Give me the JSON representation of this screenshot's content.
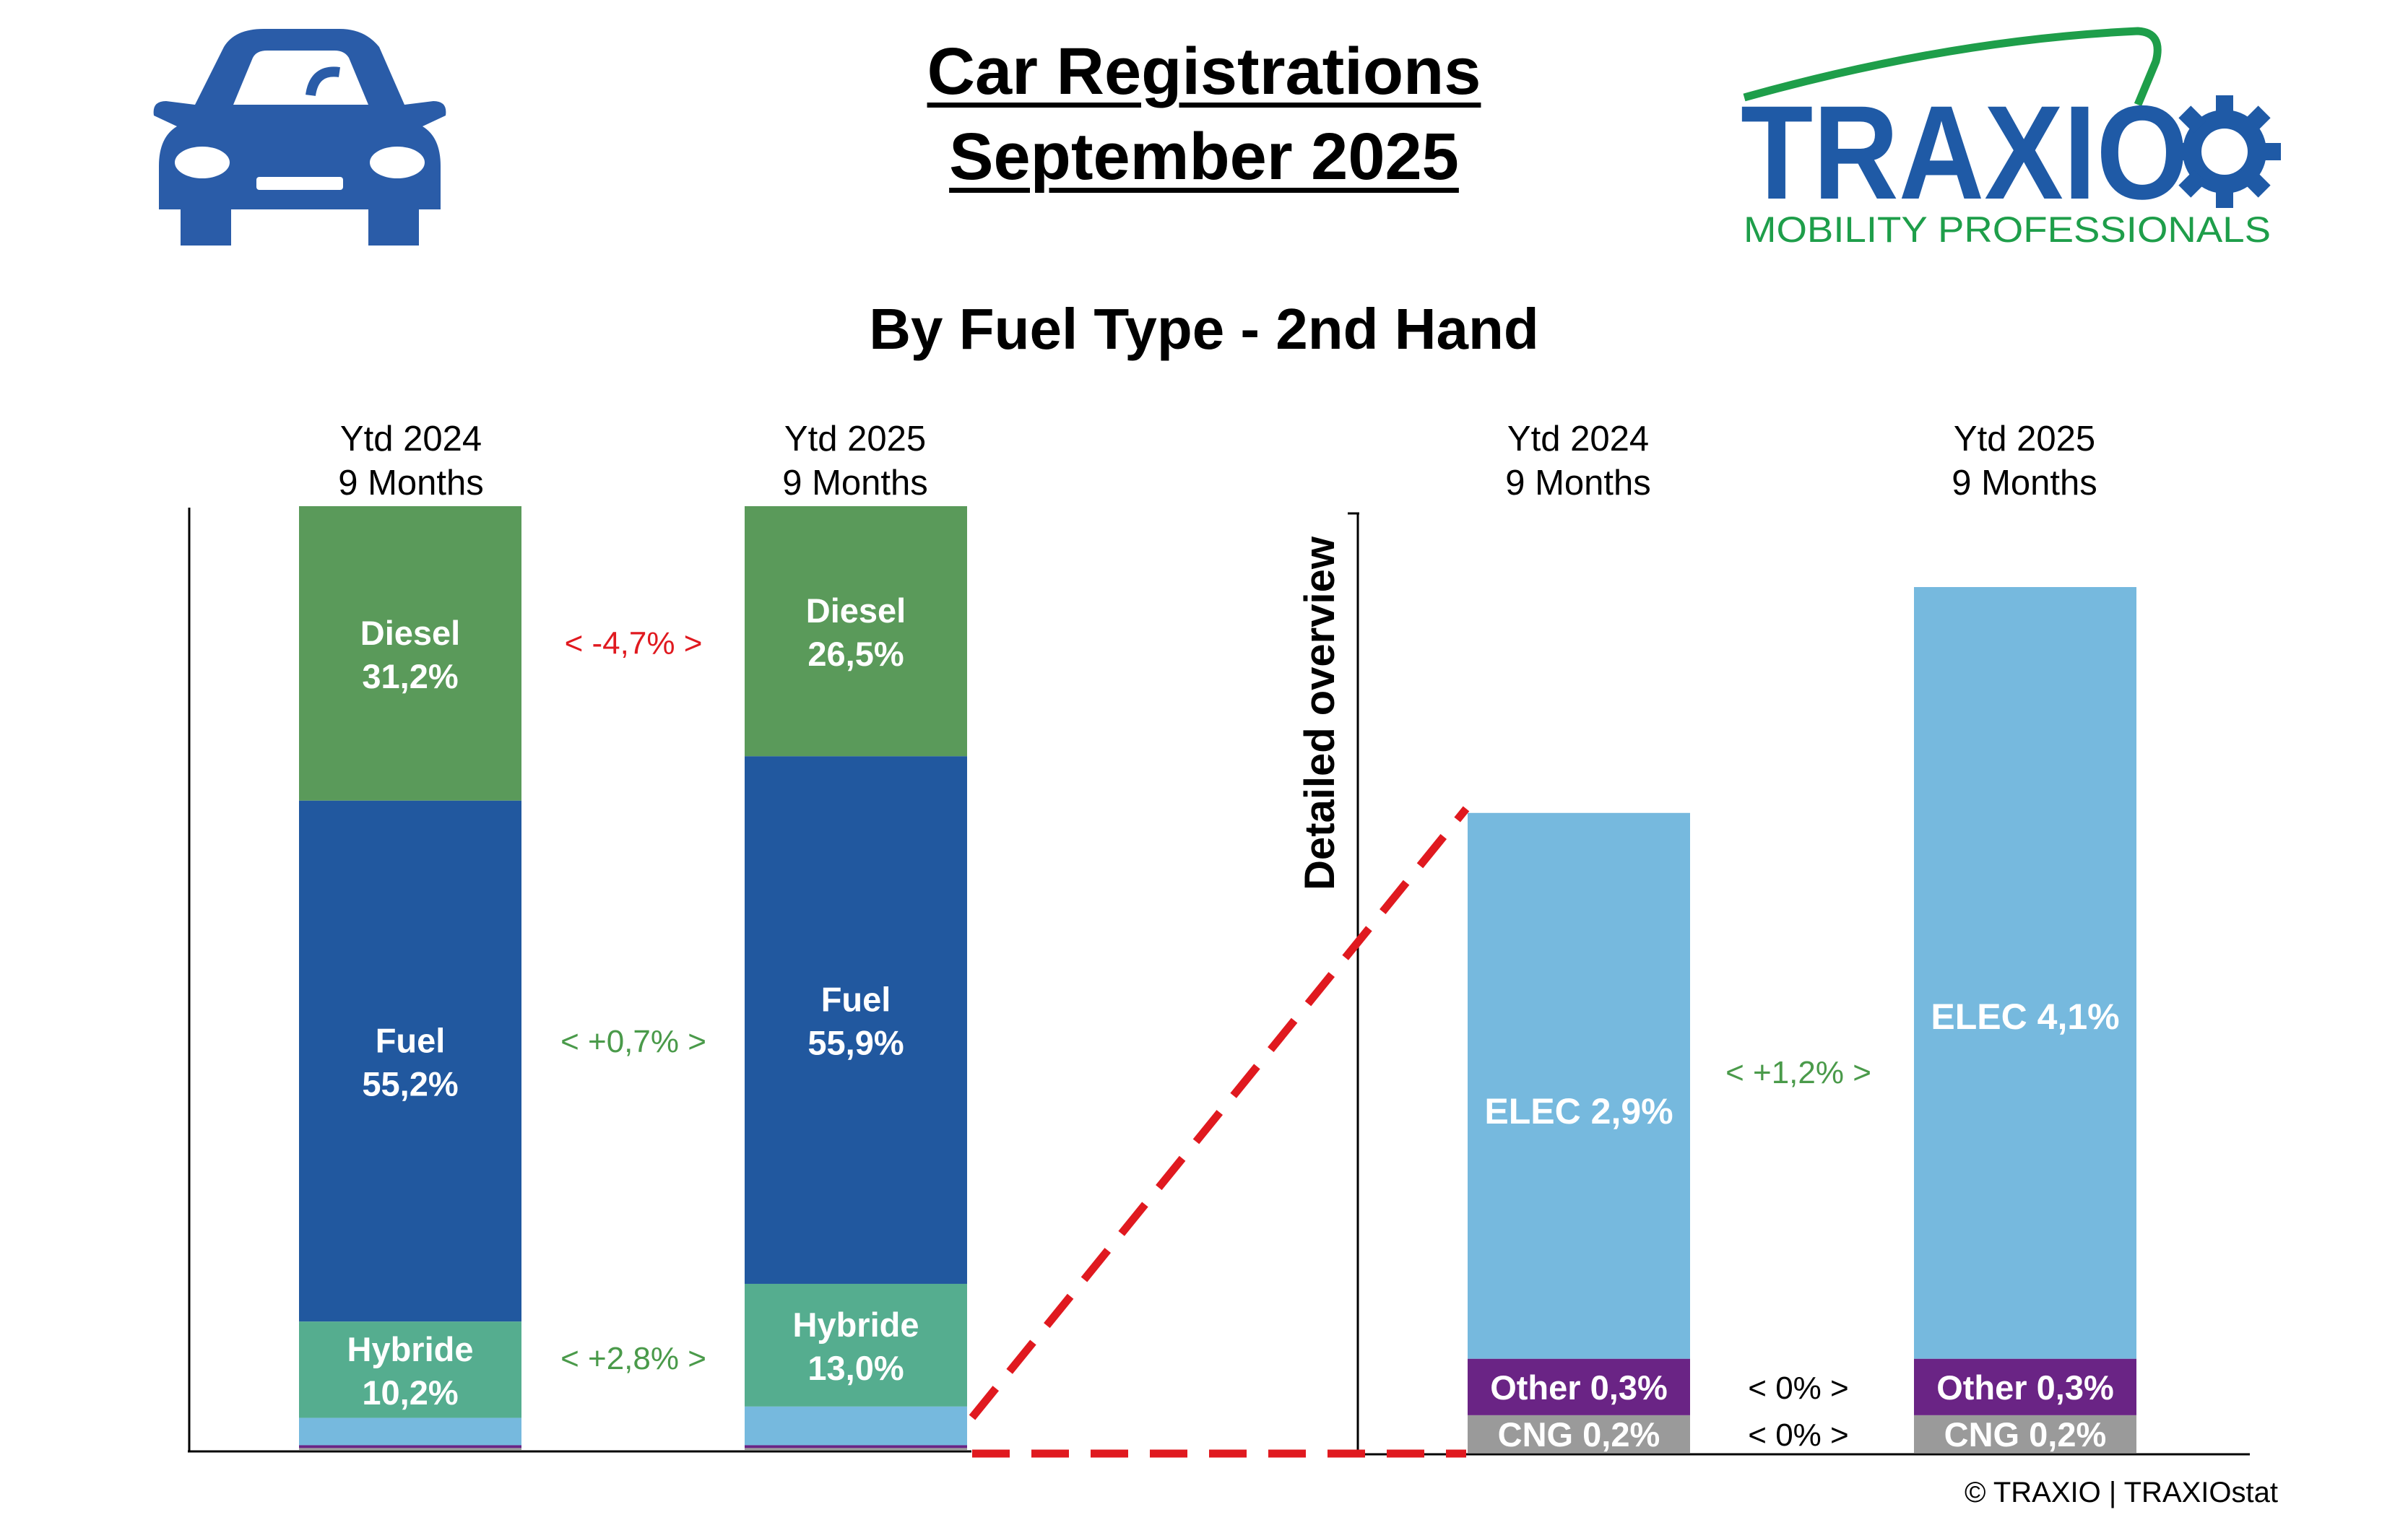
{
  "header": {
    "title_line1": "Car Registrations",
    "title_line2": "September 2025",
    "subtitle": "By Fuel Type - 2nd Hand",
    "car_icon": "car-icon",
    "logo": {
      "name": "TRAXIO",
      "tagline": "MOBILITY PROFESSIONALS",
      "brand_blue": "#1f5aa6",
      "brand_green": "#1e9e4a"
    }
  },
  "colors": {
    "diesel": "#5a9a5a",
    "fuel": "#21589f",
    "hybride": "#55ad8f",
    "elec": "#76b9de",
    "other": "#6a2485",
    "cng": "#9a9a9a",
    "delta_negative": "#e0191f",
    "delta_positive": "#4a9a4a",
    "connector": "#e0191f"
  },
  "chart_data": [
    {
      "type": "bar",
      "stacked": true,
      "normalized": true,
      "categories": [
        "Ytd 2024\n9 Months",
        "Ytd 2025\n9 Months"
      ],
      "category_labels": [
        {
          "line1": "Ytd 2024",
          "line2": "9 Months"
        },
        {
          "line1": "Ytd 2025",
          "line2": "9 Months"
        }
      ],
      "series": [
        {
          "name": "Diesel",
          "values": [
            31.2,
            26.5
          ],
          "labels": [
            "31,2%",
            "26,5%"
          ]
        },
        {
          "name": "Fuel",
          "values": [
            55.2,
            55.9
          ],
          "labels": [
            "55,2%",
            "55,9%"
          ]
        },
        {
          "name": "Hybride",
          "values": [
            10.2,
            13.0
          ],
          "labels": [
            "10,2%",
            "13,0%"
          ]
        },
        {
          "name": "",
          "values": [
            2.9,
            4.1
          ]
        },
        {
          "name": "",
          "values": [
            0.3,
            0.3
          ]
        },
        {
          "name": "",
          "values": [
            0.2,
            0.2
          ]
        }
      ],
      "deltas": [
        {
          "series": "Diesel",
          "text": "<  -4,7%  >",
          "sign": "negative"
        },
        {
          "series": "Fuel",
          "text": "<  +0,7%  >",
          "sign": "positive"
        },
        {
          "series": "Hybride",
          "text": "<  +2,8%  >",
          "sign": "positive"
        }
      ]
    },
    {
      "type": "bar",
      "stacked": true,
      "axis_label": "Detailed overview",
      "categories": [
        "Ytd 2024\n9 Months",
        "Ytd 2025\n9 Months"
      ],
      "category_labels": [
        {
          "line1": "Ytd 2024",
          "line2": "9 Months"
        },
        {
          "line1": "Ytd 2025",
          "line2": "9 Months"
        }
      ],
      "series": [
        {
          "name": "CNG",
          "values": [
            0.2,
            0.2
          ],
          "labels": [
            "CNG 0,2%",
            "CNG 0,2%"
          ]
        },
        {
          "name": "Other",
          "values": [
            0.3,
            0.3
          ],
          "labels": [
            "Other 0,3%",
            "Other 0,3%"
          ]
        },
        {
          "name": "ELEC",
          "values": [
            2.9,
            4.1
          ],
          "labels": [
            "ELEC 2,9%",
            "ELEC 4,1%"
          ]
        }
      ],
      "deltas": [
        {
          "series": "ELEC",
          "text": "<  +1,2%  >",
          "sign": "positive"
        },
        {
          "series": "Other",
          "text": "<  0%  >",
          "sign": "neutral"
        },
        {
          "series": "CNG",
          "text": "<  0%  >",
          "sign": "neutral"
        }
      ]
    }
  ],
  "footer": {
    "copyright": "© TRAXIO | TRAXIOstat"
  }
}
